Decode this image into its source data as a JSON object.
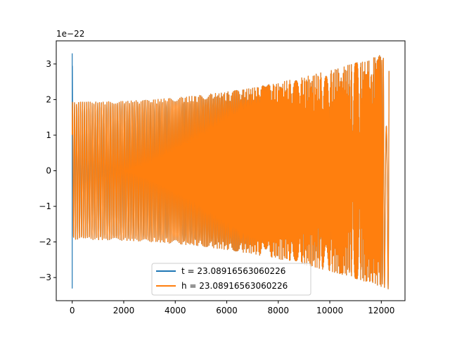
{
  "chart_data": {
    "type": "line",
    "title": "",
    "xlabel": "",
    "ylabel": "",
    "y_offset_label": "1e−22",
    "xlim": [
      -620,
      12920
    ],
    "ylim": [
      -3.65,
      3.65
    ],
    "x_ticks": [
      0,
      2000,
      4000,
      6000,
      8000,
      10000,
      12000
    ],
    "x_tick_labels": [
      "0",
      "2000",
      "4000",
      "6000",
      "8000",
      "10000",
      "12000"
    ],
    "y_ticks": [
      -3,
      -2,
      -1,
      0,
      1,
      2,
      3
    ],
    "y_tick_labels": [
      "−3",
      "−2",
      "−1",
      "0",
      "1",
      "2",
      "3"
    ],
    "grid": false,
    "legend_position": "lower center",
    "series": [
      {
        "name": "t = 23.08916563060226",
        "color": "#1f77b4",
        "description": "spike at x=0 reaching ±3.3, then oscillating chirp",
        "x_range": [
          0,
          12300
        ],
        "start_amplitude": 3.3,
        "amplitude_after_start": 1.93,
        "end_amplitude": 3.33
      },
      {
        "name": "h = 23.08916563060226",
        "color": "#ff7f0e",
        "x_range": [
          0,
          12300
        ],
        "start_amplitude": 1.93,
        "end_amplitude": 3.33
      }
    ]
  }
}
